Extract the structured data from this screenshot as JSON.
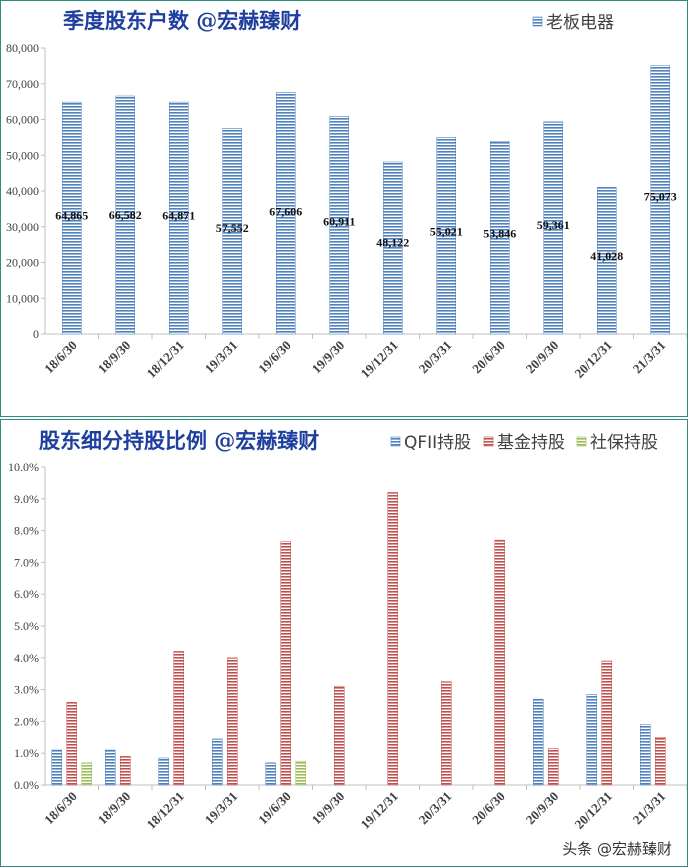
{
  "chart_data": [
    {
      "type": "bar",
      "title": "季度股东户数 @宏赫臻财",
      "legend": [
        "老板电器"
      ],
      "legend_position": "top-right",
      "categories": [
        "18/6/30",
        "18/9/30",
        "18/12/31",
        "19/3/31",
        "19/6/30",
        "19/9/30",
        "19/12/31",
        "20/3/31",
        "20/6/30",
        "20/9/30",
        "20/12/31",
        "21/3/31"
      ],
      "series": [
        {
          "name": "老板电器",
          "color": "#4f81bd",
          "values": [
            64865,
            66582,
            64871,
            57552,
            67606,
            60911,
            48122,
            55021,
            53846,
            59361,
            41028,
            75073
          ]
        }
      ],
      "data_labels": [
        "64,865",
        "66,582",
        "64,871",
        "57,552",
        "67,606",
        "60,911",
        "48,122",
        "55,021",
        "53,846",
        "59,361",
        "41,028",
        "75,073"
      ],
      "yticks": [
        "0",
        "10,000",
        "20,000",
        "30,000",
        "40,000",
        "50,000",
        "60,000",
        "70,000",
        "80,000"
      ],
      "ylim": [
        0,
        80000
      ],
      "grid": false
    },
    {
      "type": "bar",
      "title": "股东细分持股比例 @宏赫臻财",
      "legend": [
        "QFII持股",
        "基金持股",
        "社保持股"
      ],
      "legend_position": "top-right",
      "categories": [
        "18/6/30",
        "18/9/30",
        "18/12/31",
        "19/3/31",
        "19/6/30",
        "19/9/30",
        "19/12/31",
        "20/3/31",
        "20/6/30",
        "20/9/30",
        "20/12/31",
        "21/3/31"
      ],
      "series": [
        {
          "name": "QFII持股",
          "color": "#4f81bd",
          "values": [
            1.1,
            1.1,
            0.85,
            1.45,
            0.7,
            0,
            0,
            0,
            0,
            2.7,
            2.85,
            1.9
          ]
        },
        {
          "name": "基金持股",
          "color": "#c0504d",
          "values": [
            2.6,
            0.9,
            4.2,
            4.0,
            7.65,
            3.1,
            9.2,
            3.25,
            7.7,
            1.15,
            3.9,
            1.5
          ]
        },
        {
          "name": "社保持股",
          "color": "#9bbb59",
          "values": [
            0.7,
            0,
            0,
            0,
            0.75,
            0,
            0,
            0,
            0,
            0,
            0,
            0
          ]
        }
      ],
      "yticks": [
        "0.0%",
        "1.0%",
        "2.0%",
        "3.0%",
        "4.0%",
        "5.0%",
        "6.0%",
        "7.0%",
        "8.0%",
        "9.0%",
        "10.0%"
      ],
      "ylim": [
        0,
        10
      ],
      "grid": false
    }
  ],
  "watermark": "头条 @宏赫臻财"
}
